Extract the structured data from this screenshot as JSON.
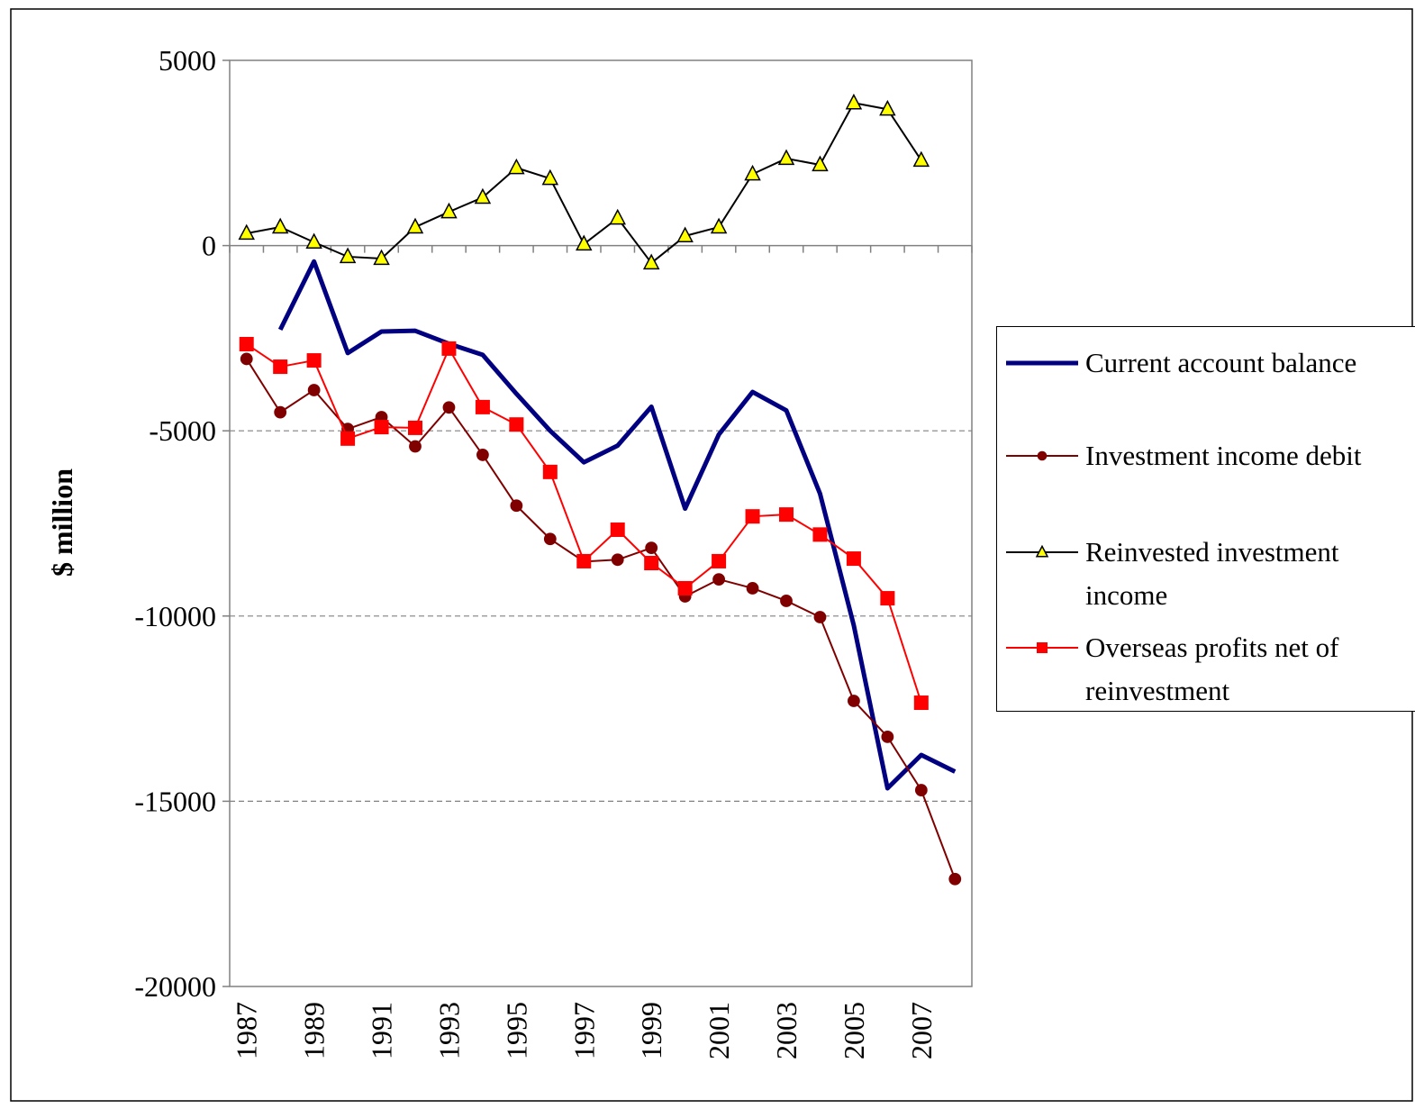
{
  "chart_data": {
    "type": "line",
    "y_label": "$ million",
    "categories": [
      "1987",
      null,
      "1989",
      null,
      "1991",
      null,
      "1993",
      null,
      "1995",
      null,
      "1997",
      null,
      "1999",
      null,
      "2001",
      null,
      "2003",
      null,
      "2005",
      null,
      "2007",
      null
    ],
    "ylim": [
      -20000,
      5000
    ],
    "yticks": [
      -20000,
      -15000,
      -10000,
      -5000,
      0,
      5000
    ],
    "grid": true,
    "legend": "right",
    "series": [
      {
        "name": "Current account balance",
        "color": "#000080",
        "marker": "none",
        "marker_color": "#000080",
        "line_width": 5,
        "values": [
          null,
          -2270,
          -430,
          -2900,
          -2320,
          -2300,
          -2650,
          -2950,
          -4000,
          -5000,
          -5850,
          -5400,
          -4350,
          -7100,
          -5100,
          -3950,
          -4450,
          -6700,
          -10250,
          -14650,
          -13750,
          -14200
        ]
      },
      {
        "name": "Investment income debit",
        "color": "#800000",
        "marker": "circle",
        "marker_color": "#800000",
        "line_width": 2,
        "values": [
          -3060,
          -4500,
          -3900,
          -4950,
          -4630,
          -5420,
          -4370,
          -5650,
          -7020,
          -7920,
          -8530,
          -8480,
          -8160,
          -9470,
          -9010,
          -9250,
          -9590,
          -10030,
          -12290,
          -13260,
          -14700,
          -17100
        ]
      },
      {
        "name": "Reinvested investment income",
        "color": "#000000",
        "marker": "triangle",
        "marker_color": "#ffff00",
        "line_width": 2,
        "values": [
          330,
          500,
          90,
          -300,
          -350,
          500,
          910,
          1300,
          2100,
          1810,
          40,
          740,
          -470,
          260,
          500,
          1930,
          2350,
          2180,
          3850,
          3680,
          2300,
          null
        ]
      },
      {
        "name": "Overseas profits net of reinvestment",
        "color": "#ff0000",
        "marker": "square",
        "marker_color": "#ff0000",
        "line_width": 2,
        "values": [
          -2660,
          -3270,
          -3100,
          -5210,
          -4900,
          -4920,
          -2780,
          -4360,
          -4830,
          -6110,
          -8520,
          -7670,
          -8570,
          -9250,
          -8520,
          -7310,
          -7260,
          -7800,
          -8450,
          -9520,
          -12340,
          null
        ]
      }
    ]
  }
}
